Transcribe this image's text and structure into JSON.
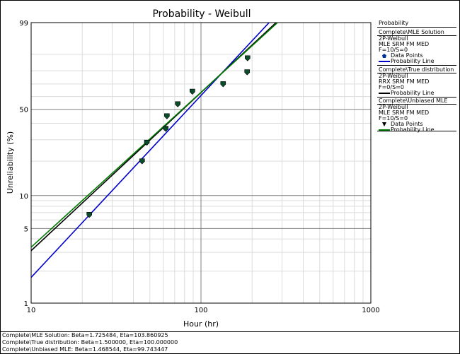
{
  "chart_data": {
    "type": "scatter",
    "title": "Probability - Weibull",
    "xlabel": "Hour (hr)",
    "ylabel": "Unreliability (%)",
    "x_scale": "log",
    "y_scale": "weibull",
    "xlim": [
      10,
      1000
    ],
    "ylim": [
      1,
      99
    ],
    "x_ticks": [
      "10",
      "100",
      "1000"
    ],
    "y_ticks": [
      "1",
      "5",
      "10",
      "50",
      "99"
    ],
    "grid": true,
    "legend_position": "right",
    "series": [
      {
        "name": "Complete\\MLE Solution",
        "kind": "points",
        "marker": "pentagon",
        "color": "#0a4d2a",
        "points": [
          [
            22,
            6.7
          ],
          [
            45,
            20
          ],
          [
            48,
            28.5
          ],
          [
            62,
            36.5
          ],
          [
            63,
            45
          ],
          [
            73,
            54
          ],
          [
            89,
            64
          ],
          [
            135,
            70
          ],
          [
            187,
            79
          ],
          [
            188,
            88
          ]
        ]
      },
      {
        "name": "Complete\\MLE Solution",
        "kind": "line",
        "color": "#0000cc",
        "beta": 1.725484,
        "eta": 103.860925
      },
      {
        "name": "Complete\\True distribution",
        "kind": "line",
        "color": "#000000",
        "beta": 1.5,
        "eta": 100.0
      },
      {
        "name": "Complete\\Unbiased MLE",
        "kind": "line",
        "color": "#007a00",
        "beta": 1.468544,
        "eta": 99.743447
      }
    ]
  },
  "legend": {
    "header": "Probability",
    "blocks": [
      {
        "lines": [
          "Complete\\MLE Solution",
          "2P-Weibull",
          "MLE SRM FM MED",
          "F=10/S=0"
        ],
        "entries": [
          {
            "label": "Data Points",
            "swatch": "point",
            "color": "#003399"
          },
          {
            "label": "Probability Line",
            "swatch": "line",
            "color": "#0000cc"
          }
        ]
      },
      {
        "lines": [
          "Complete\\True distribution",
          "2P-Weibull",
          "RRX SRM FM MED",
          "F=0/S=0"
        ],
        "entries": [
          {
            "label": "Probability Line",
            "swatch": "line",
            "color": "#000000"
          }
        ]
      },
      {
        "lines": [
          "Complete\\Unbiased MLE",
          "2P-Weibull",
          "MLE SRM FM MED",
          "F=10/S=0"
        ],
        "entries": [
          {
            "label": "Data Points",
            "swatch": "triangle",
            "color": "#000000"
          },
          {
            "label": "Probability Line",
            "swatch": "line",
            "color": "#007a00"
          }
        ]
      }
    ]
  },
  "footer": {
    "lines": [
      "Complete\\MLE Solution: Beta=1.725484, Eta=103.860925",
      "Complete\\True distribution: Beta=1.500000, Eta=100.000000",
      "Complete\\Unbiased MLE: Beta=1.468544, Eta=99.743447"
    ]
  }
}
